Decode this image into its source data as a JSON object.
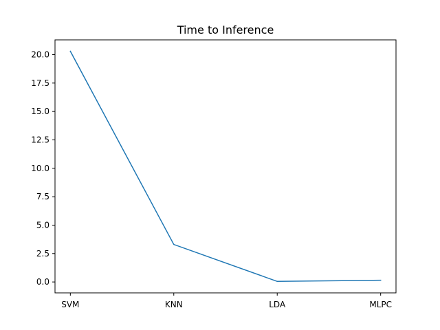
{
  "chart_data": {
    "type": "line",
    "title": "Time to Inference",
    "xlabel": "",
    "ylabel": "",
    "categories": [
      "SVM",
      "KNN",
      "LDA",
      "MLPC"
    ],
    "series": [
      {
        "values": [
          20.3,
          3.3,
          0.05,
          0.15
        ],
        "color": "#1f77b4"
      }
    ],
    "ylim": [
      -0.96,
      21.3
    ],
    "yticks": [
      0.0,
      2.5,
      5.0,
      7.5,
      10.0,
      12.5,
      15.0,
      17.5,
      20.0
    ],
    "ytick_labels": [
      "0.0",
      "2.5",
      "5.0",
      "7.5",
      "10.0",
      "12.5",
      "15.0",
      "17.5",
      "20.0"
    ],
    "grid": false,
    "legend": false
  }
}
